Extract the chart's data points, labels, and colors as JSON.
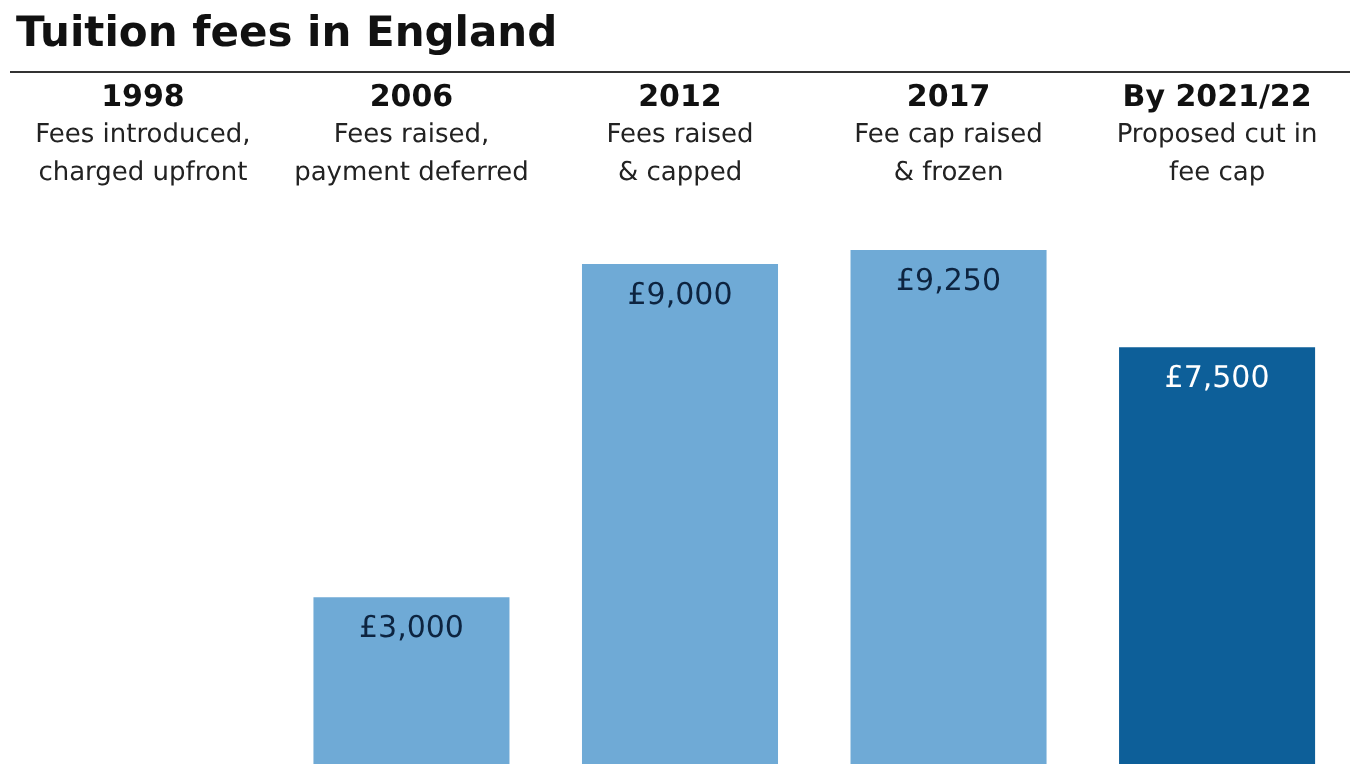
{
  "chart_data": {
    "type": "bar",
    "title": "Tuition fees in England",
    "categories": [
      "1998",
      "2006",
      "2012",
      "2017",
      "By 2021/22"
    ],
    "values": [
      null,
      3000,
      9000,
      9250,
      7500
    ],
    "value_labels": [
      null,
      "£3,000",
      "£9,000",
      "£9,250",
      "£7,500"
    ],
    "colors": [
      "#6faad6",
      "#6faad6",
      "#6faad6",
      "#6faad6",
      "#0d5f99"
    ],
    "annotations": [
      "Fees introduced,\ncharged upfront",
      "Fees raised,\npayment deferred",
      "Fees raised\n& capped",
      "Fee cap raised\n& frozen",
      "Proposed cut in\nfee cap"
    ]
  }
}
